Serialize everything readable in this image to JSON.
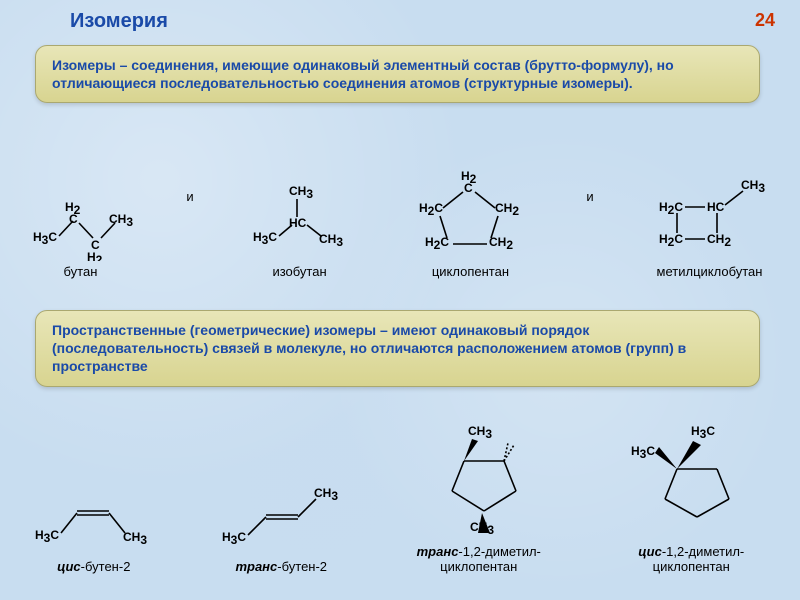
{
  "page": {
    "title": "Изомерия",
    "number": "24"
  },
  "definitions": {
    "structural": "Изомеры – соединения, имеющие одинаковый элементный состав (брутто-формулу), но отличающиеся последовательностью соединения атомов (структурные изомеры).",
    "spatial": "Пространственные (геометрические) изомеры – имеют одинаковый порядок (последовательность) связей  в молекуле, но отличаются расположением атомов (групп) в пространстве"
  },
  "colors": {
    "background": "#c8ddf0",
    "title": "#1a4aa8",
    "pagenum": "#cc3300",
    "box_bg_top": "#e8e6b8",
    "box_bg_bottom": "#d8d490",
    "bond": "#000000"
  },
  "row1": {
    "conj": "и",
    "mols": [
      {
        "label_plain": "бутан",
        "groups": [
          "H₃C",
          "H₂",
          "H₂",
          "CH₃"
        ]
      },
      {
        "label_plain": "изобутан",
        "groups": [
          "H₃C",
          "CH₃",
          "HC",
          "CH₃"
        ]
      },
      {
        "label_plain": "циклопентан",
        "groups": [
          "H₂C",
          "H₂C",
          "C",
          "CH₂",
          "CH₂",
          "H₂"
        ]
      },
      {
        "label_plain": "метилциклобутан",
        "groups": [
          "H₂C",
          "H₂C",
          "HC",
          "CH₂",
          "CH₃"
        ]
      }
    ]
  },
  "row2": {
    "mols": [
      {
        "label_html": "<span class='it b'>цис</span>-бутен-2",
        "groups": [
          "H₃C",
          "CH₃"
        ]
      },
      {
        "label_html": "<span class='it b'>транс</span>-бутен-2",
        "groups": [
          "H₃C",
          "CH₃"
        ]
      },
      {
        "label_html": "<span class='it b'>транс</span>-1,2-диметил-<br>циклопентан",
        "groups": [
          "CH₃",
          "CH₃"
        ]
      },
      {
        "label_html": "<span class='it b'>цис</span>-1,2-диметил-<br>циклопентан",
        "groups": [
          "H₃C",
          "H₃C"
        ]
      }
    ]
  }
}
